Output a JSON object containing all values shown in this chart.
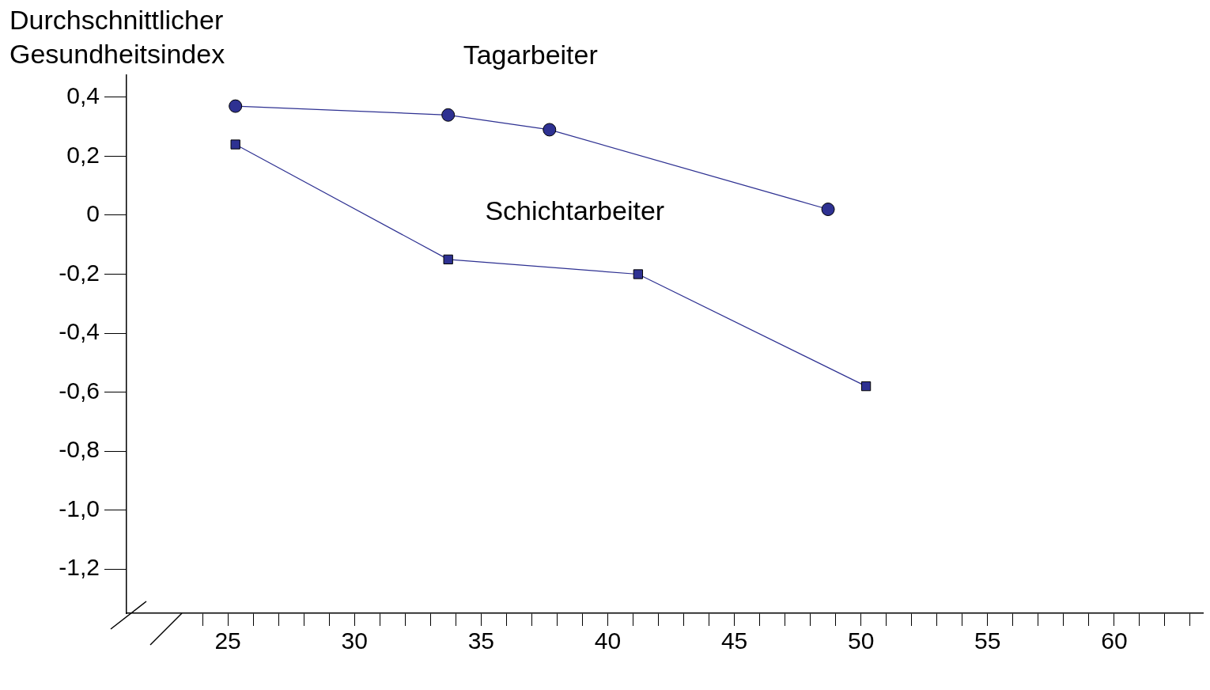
{
  "chart_data": {
    "type": "line",
    "ylabel": "Durchschnittlicher Gesundheitsindex",
    "xlim": [
      21,
      63.5
    ],
    "xticks": [
      {
        "value": 24,
        "label": null
      },
      {
        "value": 25,
        "label": "25"
      },
      {
        "value": 26,
        "label": null
      },
      {
        "value": 27,
        "label": null
      },
      {
        "value": 28,
        "label": null
      },
      {
        "value": 29,
        "label": null
      },
      {
        "value": 30,
        "label": "30"
      },
      {
        "value": 31,
        "label": null
      },
      {
        "value": 32,
        "label": null
      },
      {
        "value": 33,
        "label": null
      },
      {
        "value": 34,
        "label": null
      },
      {
        "value": 35,
        "label": "35"
      },
      {
        "value": 36,
        "label": null
      },
      {
        "value": 37,
        "label": null
      },
      {
        "value": 38,
        "label": null
      },
      {
        "value": 39,
        "label": null
      },
      {
        "value": 40,
        "label": "40"
      },
      {
        "value": 41,
        "label": null
      },
      {
        "value": 42,
        "label": null
      },
      {
        "value": 43,
        "label": null
      },
      {
        "value": 44,
        "label": null
      },
      {
        "value": 45,
        "label": "45"
      },
      {
        "value": 46,
        "label": null
      },
      {
        "value": 47,
        "label": null
      },
      {
        "value": 48,
        "label": null
      },
      {
        "value": 49,
        "label": null
      },
      {
        "value": 50,
        "label": "50"
      },
      {
        "value": 51,
        "label": null
      },
      {
        "value": 52,
        "label": null
      },
      {
        "value": 53,
        "label": null
      },
      {
        "value": 54,
        "label": null
      },
      {
        "value": 55,
        "label": "55"
      },
      {
        "value": 56,
        "label": null
      },
      {
        "value": 57,
        "label": null
      },
      {
        "value": 58,
        "label": null
      },
      {
        "value": 59,
        "label": null
      },
      {
        "value": 60,
        "label": "60"
      },
      {
        "value": 61,
        "label": null
      },
      {
        "value": 62,
        "label": null
      },
      {
        "value": 63,
        "label": null
      }
    ],
    "ylim": [
      -1.35,
      0.475
    ],
    "yticks": [
      {
        "value": 0.4,
        "label": "0,4"
      },
      {
        "value": 0.2,
        "label": "0,2"
      },
      0,
      {
        "value": -0.2,
        "label": "-0,2"
      },
      {
        "value": -0.4,
        "label": "-0,4"
      },
      {
        "value": -0.6,
        "label": "-0,6"
      },
      {
        "value": -0.8,
        "label": "-0,8"
      },
      {
        "value": -1.0,
        "label": "-1,0"
      },
      {
        "value": -1.2,
        "label": "-1,2"
      }
    ],
    "grid": false,
    "legend": false,
    "line_style": "solid",
    "series": [
      {
        "name": "Tagarbeiter",
        "color": "#2e3192",
        "marker": "circle",
        "x": [
          25.3,
          33.7,
          37.7,
          48.7
        ],
        "values": [
          0.37,
          0.34,
          0.29,
          0.02
        ]
      },
      {
        "name": "Schichtarbeiter",
        "color": "#2e3192",
        "marker": "square",
        "x": [
          25.3,
          33.7,
          41.2,
          50.2
        ],
        "values": [
          0.24,
          -0.15,
          -0.2,
          -0.58
        ]
      }
    ]
  }
}
